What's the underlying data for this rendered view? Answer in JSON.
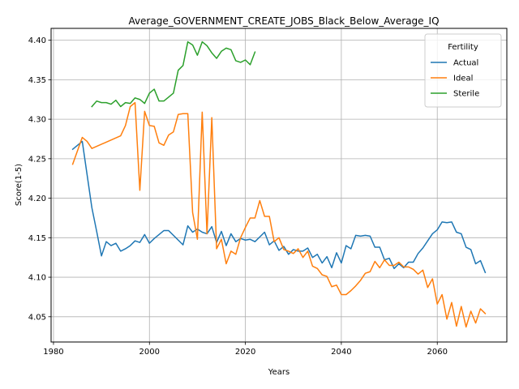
{
  "chart_data": {
    "type": "line",
    "title": "Average_GOVERNMENT_CREATE_JOBS_Black_Below_Average_IQ",
    "xlabel": "Years",
    "ylabel": "Score(1-5)",
    "xlim": [
      1979.5,
      2074.5
    ],
    "ylim": [
      4.018,
      4.415
    ],
    "xticks": [
      1980,
      2000,
      2020,
      2040,
      2060
    ],
    "yticks": [
      4.05,
      4.1,
      4.15,
      4.2,
      4.25,
      4.3,
      4.35,
      4.4
    ],
    "ytick_labels": [
      "4.05",
      "4.10",
      "4.15",
      "4.20",
      "4.25",
      "4.30",
      "4.35",
      "4.40"
    ],
    "grid": true,
    "legend": {
      "title": "Fertility",
      "placement": "top-right"
    },
    "series": [
      {
        "name": "Actual",
        "color": "#1f77b4",
        "x": [
          1984,
          1986,
          1987,
          1988,
          1989,
          1990,
          1991,
          1992,
          1993,
          1994,
          1995,
          1996,
          1997,
          1998,
          1999,
          2000,
          2001,
          2002,
          2003,
          2004,
          2005,
          2006,
          2007,
          2008,
          2009,
          2010,
          2011,
          2012,
          2013,
          2014,
          2015,
          2016,
          2017,
          2018,
          2019,
          2020,
          2021,
          2022,
          2023,
          2024,
          2025,
          2026,
          2027,
          2028,
          2029,
          2030,
          2031,
          2032,
          2033,
          2034,
          2035,
          2036,
          2037,
          2038,
          2039,
          2040,
          2041,
          2042,
          2043,
          2044,
          2045,
          2046,
          2047,
          2048,
          2049,
          2050,
          2051,
          2052,
          2053,
          2054,
          2055,
          2056,
          2057,
          2058,
          2059,
          2060,
          2061,
          2062,
          2063,
          2064,
          2065,
          2066,
          2067,
          2068,
          2069,
          2070
        ],
        "y": [
          4.262,
          4.272,
          4.23,
          4.188,
          4.158,
          4.127,
          4.145,
          4.14,
          4.143,
          4.133,
          4.136,
          4.14,
          4.146,
          4.144,
          4.154,
          4.143,
          4.149,
          4.154,
          4.159,
          4.159,
          4.153,
          4.147,
          4.141,
          4.165,
          4.157,
          4.161,
          4.157,
          4.155,
          4.164,
          4.144,
          4.158,
          4.14,
          4.155,
          4.145,
          4.149,
          4.147,
          4.148,
          4.145,
          4.151,
          4.157,
          4.141,
          4.146,
          4.134,
          4.139,
          4.129,
          4.135,
          4.133,
          4.133,
          4.137,
          4.125,
          4.129,
          4.118,
          4.126,
          4.112,
          4.131,
          4.118,
          4.14,
          4.136,
          4.153,
          4.152,
          4.153,
          4.152,
          4.138,
          4.138,
          4.122,
          4.124,
          4.111,
          4.117,
          4.112,
          4.119,
          4.119,
          4.13,
          4.137,
          4.146,
          4.155,
          4.16,
          4.17,
          4.169,
          4.17,
          4.157,
          4.155,
          4.138,
          4.135,
          4.117,
          4.121,
          4.106
        ]
      },
      {
        "name": "Ideal",
        "color": "#ff7f0e",
        "x": [
          1984,
          1986,
          1987,
          1988,
          1994,
          1995,
          1996,
          1997,
          1998,
          1999,
          2000,
          2001,
          2002,
          2003,
          2004,
          2005,
          2006,
          2007,
          2008,
          2009,
          2010,
          2011,
          2012,
          2013,
          2014,
          2015,
          2016,
          2017,
          2018,
          2019,
          2020,
          2021,
          2022,
          2023,
          2024,
          2025,
          2026,
          2027,
          2028,
          2029,
          2030,
          2031,
          2032,
          2033,
          2034,
          2035,
          2036,
          2037,
          2038,
          2039,
          2040,
          2041,
          2042,
          2043,
          2044,
          2045,
          2046,
          2047,
          2048,
          2049,
          2050,
          2051,
          2052,
          2053,
          2054,
          2055,
          2056,
          2057,
          2058,
          2059,
          2060,
          2061,
          2062,
          2063,
          2064,
          2065,
          2066,
          2067,
          2068,
          2069,
          2070
        ],
        "y": [
          4.243,
          4.277,
          4.272,
          4.263,
          4.279,
          4.292,
          4.316,
          4.321,
          4.21,
          4.31,
          4.292,
          4.291,
          4.27,
          4.267,
          4.28,
          4.284,
          4.306,
          4.307,
          4.307,
          4.182,
          4.148,
          4.309,
          4.155,
          4.302,
          4.136,
          4.148,
          4.117,
          4.133,
          4.129,
          4.15,
          4.163,
          4.175,
          4.175,
          4.197,
          4.177,
          4.177,
          4.145,
          4.15,
          4.135,
          4.133,
          4.13,
          4.136,
          4.125,
          4.133,
          4.114,
          4.111,
          4.103,
          4.101,
          4.088,
          4.09,
          4.078,
          4.078,
          4.083,
          4.089,
          4.096,
          4.105,
          4.107,
          4.12,
          4.112,
          4.122,
          4.115,
          4.115,
          4.119,
          4.113,
          4.113,
          4.11,
          4.104,
          4.109,
          4.087,
          4.098,
          4.066,
          4.078,
          4.047,
          4.068,
          4.038,
          4.063,
          4.037,
          4.057,
          4.042,
          4.06,
          4.054
        ]
      },
      {
        "name": "Sterile",
        "color": "#2ca02c",
        "x": [
          1988,
          1989,
          1990,
          1991,
          1992,
          1993,
          1994,
          1995,
          1996,
          1997,
          1998,
          1999,
          2000,
          2001,
          2002,
          2003,
          2004,
          2005,
          2006,
          2007,
          2008,
          2009,
          2010,
          2011,
          2012,
          2013,
          2014,
          2015,
          2016,
          2017,
          2018,
          2019,
          2020,
          2021,
          2022
        ],
        "y": [
          4.316,
          4.323,
          4.321,
          4.321,
          4.319,
          4.324,
          4.316,
          4.321,
          4.32,
          4.327,
          4.325,
          4.32,
          4.333,
          4.338,
          4.323,
          4.323,
          4.328,
          4.333,
          4.362,
          4.368,
          4.398,
          4.394,
          4.381,
          4.398,
          4.393,
          4.384,
          4.377,
          4.386,
          4.39,
          4.388,
          4.374,
          4.372,
          4.375,
          4.369,
          4.385
        ]
      }
    ]
  }
}
